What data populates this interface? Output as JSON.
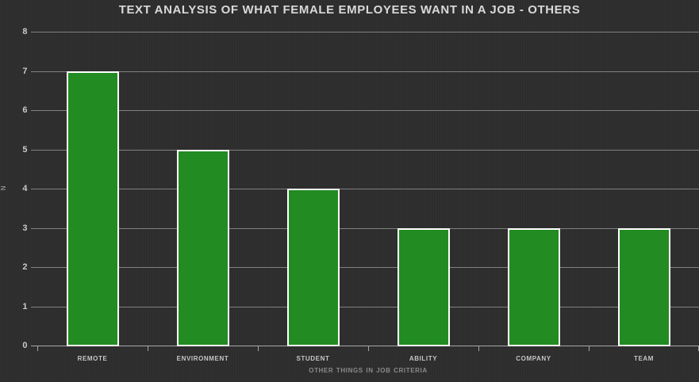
{
  "chart_data": {
    "type": "bar",
    "title": "TEXT ANALYSIS OF WHAT FEMALE EMPLOYEES WANT IN A JOB - OTHERS",
    "categories": [
      "remote",
      "environment",
      "student",
      "ability",
      "company",
      "team"
    ],
    "values": [
      7,
      5,
      4,
      3,
      3,
      3
    ],
    "xlabel": "other things in job criteria",
    "ylabel": "n",
    "ylim": [
      0,
      8
    ],
    "yticks": [
      0,
      1,
      2,
      3,
      4,
      5,
      6,
      7,
      8
    ],
    "grid": true,
    "legend": "none",
    "colors": {
      "background": "#2e2e2f",
      "bar_fill": "#228b22",
      "bar_border": "#ffffff",
      "gridline": "#8f8f8f",
      "axis": "#a5a5a5",
      "title_text": "#d9d9d9",
      "tick_text": "#c9c9c9",
      "axis_title_text": "#8a8a8a"
    }
  }
}
